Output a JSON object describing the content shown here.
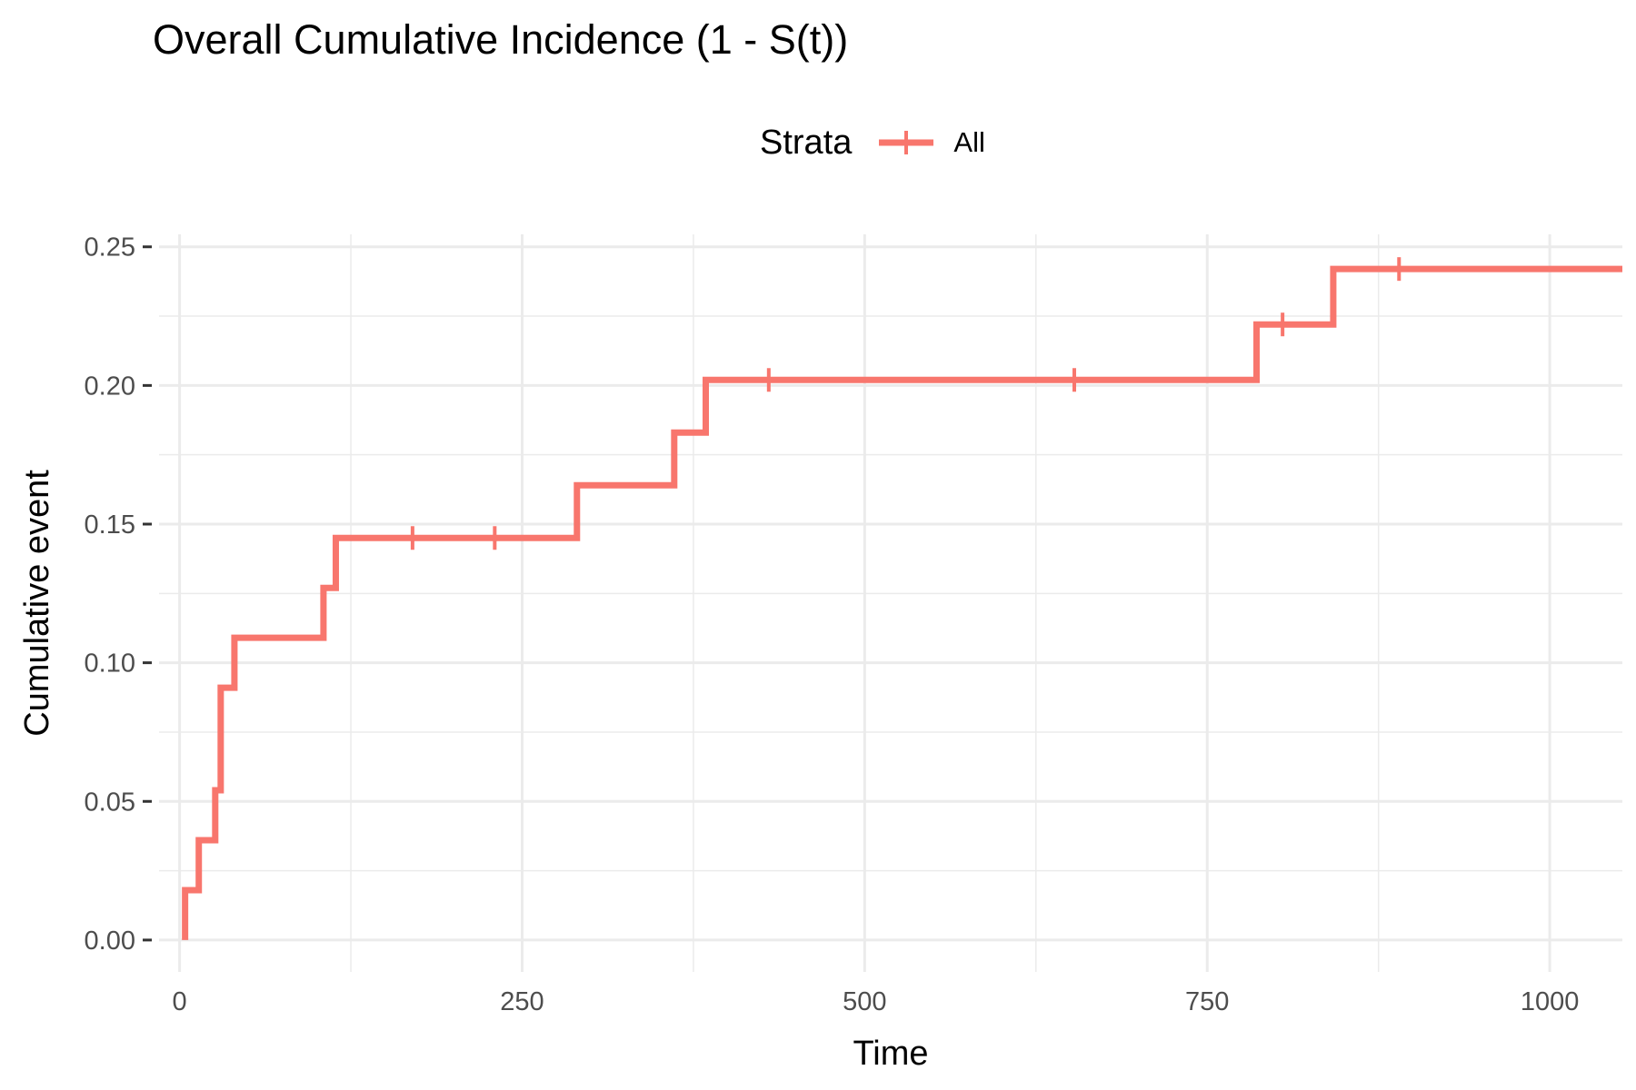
{
  "chart_data": {
    "type": "line",
    "step": true,
    "title": "Overall Cumulative Incidence (1 - S(t))",
    "xlabel": "Time",
    "ylabel": "Cumulative event",
    "xlim": [
      -15,
      1053
    ],
    "ylim": [
      -0.0115,
      0.2545
    ],
    "x_ticks": [
      0,
      250,
      500,
      750,
      1000
    ],
    "x_tick_labels": [
      "0",
      "250",
      "500",
      "750",
      "1000"
    ],
    "y_ticks": [
      0,
      0.05,
      0.1,
      0.15,
      0.2,
      0.25
    ],
    "y_tick_labels": [
      "0.00",
      "0.05",
      "0.10",
      "0.15",
      "0.20",
      "0.25"
    ],
    "x_minor_ticks": [
      125,
      375,
      625,
      875
    ],
    "y_minor_ticks": [
      0.025,
      0.075,
      0.125,
      0.175,
      0.225
    ],
    "grid": true,
    "legend": {
      "title": "Strata",
      "position": "top",
      "entries": [
        "All"
      ]
    },
    "series": [
      {
        "name": "All",
        "color": "#F8766D",
        "steps": [
          [
            4,
            0.0
          ],
          [
            4,
            0.018
          ],
          [
            14,
            0.036
          ],
          [
            26,
            0.054
          ],
          [
            30,
            0.091
          ],
          [
            40,
            0.109
          ],
          [
            105,
            0.127
          ],
          [
            114,
            0.145
          ],
          [
            290,
            0.164
          ],
          [
            361,
            0.183
          ],
          [
            384,
            0.202
          ],
          [
            786,
            0.222
          ],
          [
            842,
            0.242
          ]
        ],
        "x_end": 1053,
        "censor_marks": [
          [
            170,
            0.145
          ],
          [
            230,
            0.145
          ],
          [
            430,
            0.202
          ],
          [
            653,
            0.202
          ],
          [
            805,
            0.222
          ],
          [
            890,
            0.242
          ]
        ]
      }
    ]
  }
}
